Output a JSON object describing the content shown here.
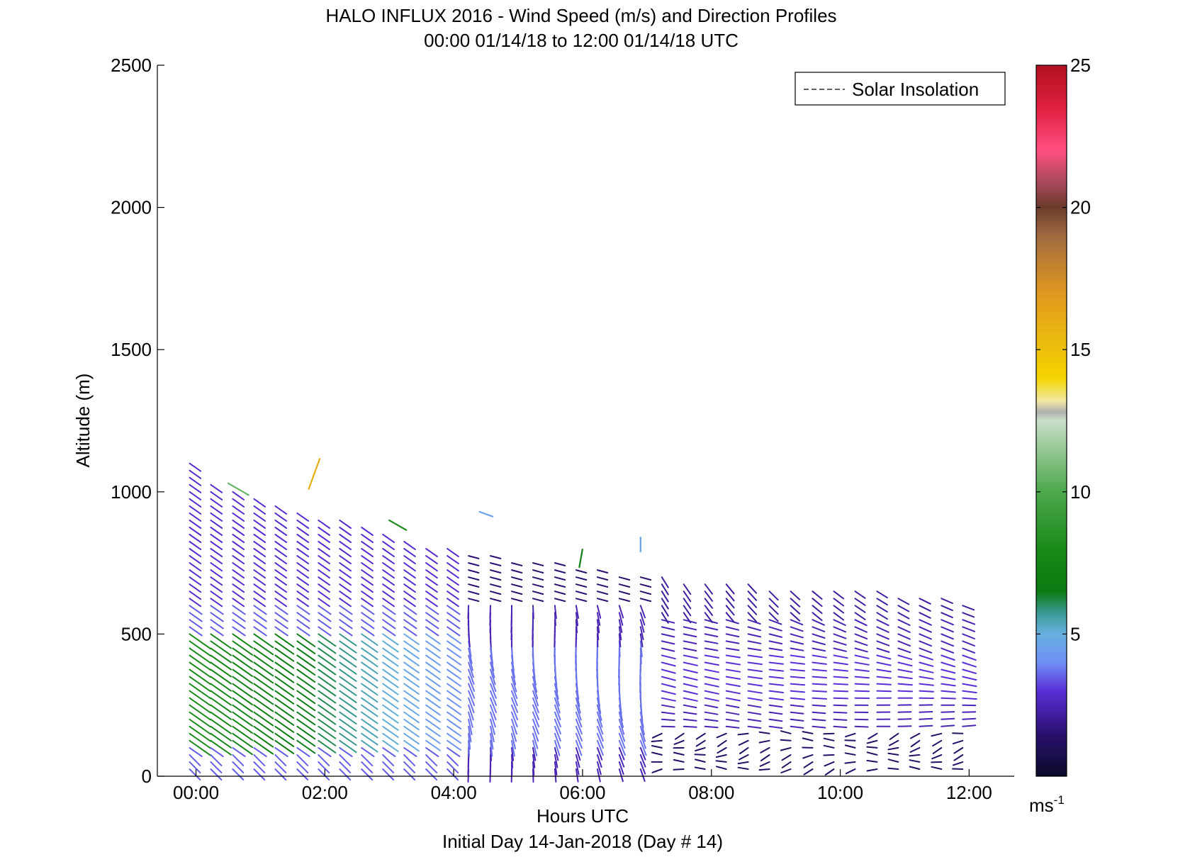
{
  "chart_data": {
    "type": "wind-barb-profile",
    "title": "HALO INFLUX 2016 - Wind Speed (m/s) and Direction Profiles",
    "subtitle": "00:00 01/14/18 to 12:00 01/14/18  UTC",
    "xlabel": "Hours UTC",
    "xlabel2": "Initial Day 14-Jan-2018 (Day # 14)",
    "ylabel": "Altitude (m)",
    "xlim": [
      -0.6,
      12.7
    ],
    "ylim": [
      0,
      2500
    ],
    "x_ticks": [
      {
        "value": 0,
        "label": "00:00"
      },
      {
        "value": 2,
        "label": "02:00"
      },
      {
        "value": 4,
        "label": "04:00"
      },
      {
        "value": 6,
        "label": "06:00"
      },
      {
        "value": 8,
        "label": "08:00"
      },
      {
        "value": 10,
        "label": "10:00"
      },
      {
        "value": 12,
        "label": "12:00"
      }
    ],
    "y_ticks": [
      {
        "value": 0,
        "label": "0"
      },
      {
        "value": 500,
        "label": "500"
      },
      {
        "value": 1000,
        "label": "1000"
      },
      {
        "value": 1500,
        "label": "1500"
      },
      {
        "value": 2000,
        "label": "2000"
      },
      {
        "value": 2500,
        "label": "2500"
      }
    ],
    "legend": {
      "label": "Solar Insolation",
      "placement": "top-right",
      "line_style": "dashed"
    },
    "colorbar": {
      "min": 0,
      "max": 25,
      "unit_base": "ms",
      "unit_exp": "-1",
      "ticks": [
        {
          "value": 5,
          "label": "5"
        },
        {
          "value": 10,
          "label": "10"
        },
        {
          "value": 15,
          "label": "15"
        },
        {
          "value": 20,
          "label": "20"
        },
        {
          "value": 25,
          "label": "25"
        }
      ],
      "colormap": [
        [
          0,
          "#0b0b2a"
        ],
        [
          1.5,
          "#2a1070"
        ],
        [
          3,
          "#5a2fd8"
        ],
        [
          4,
          "#6f8ff5"
        ],
        [
          5,
          "#67b0e0"
        ],
        [
          5.7,
          "#3d9b9a"
        ],
        [
          6.5,
          "#0a7a10"
        ],
        [
          8,
          "#1a8a1a"
        ],
        [
          10,
          "#4ca84c"
        ],
        [
          12.5,
          "#c8e0c8"
        ],
        [
          12.8,
          "#b0b0b0"
        ],
        [
          13.2,
          "#f2e8a0"
        ],
        [
          14,
          "#f4d400"
        ],
        [
          17,
          "#e09820"
        ],
        [
          19,
          "#a06a40"
        ],
        [
          20,
          "#6a3c2c"
        ],
        [
          21,
          "#b04a60"
        ],
        [
          22,
          "#ff4f80"
        ],
        [
          23.5,
          "#e02040"
        ],
        [
          25,
          "#b01020"
        ]
      ]
    },
    "grid": false,
    "profiles": {
      "times": [
        -0.1,
        0.23,
        0.57,
        0.9,
        1.23,
        1.57,
        1.9,
        2.23,
        2.57,
        2.9,
        3.23,
        3.57,
        3.9,
        4.23,
        4.57,
        4.9,
        5.23,
        5.57,
        5.9,
        6.23,
        6.57,
        6.9,
        7.23,
        7.57,
        7.9,
        8.23,
        8.57,
        8.9,
        9.23,
        9.57,
        9.9,
        10.23,
        10.57,
        10.9,
        11.23,
        11.57,
        11.9
      ],
      "top_altitude_m": [
        1110,
        1040,
        1020,
        990,
        960,
        940,
        920,
        900,
        880,
        860,
        840,
        820,
        800,
        790,
        780,
        770,
        760,
        750,
        740,
        730,
        720,
        710,
        700,
        690,
        690,
        680,
        680,
        670,
        670,
        660,
        660,
        650,
        650,
        640,
        640,
        630,
        620
      ],
      "altitude_step_m": 25,
      "note": "Wind vectors every ~25 m: early hours NW flow ~3-8 m/s (green band 150-500 m), transitioning to weak northerly, then light easterly/westerly 1-3 m/s near surface after 07:00.",
      "isolated_vectors": [
        {
          "time": 0.5,
          "alt": 1030,
          "speed": 10.5,
          "dir_deg": 150
        },
        {
          "time": 1.75,
          "alt": 1010,
          "speed": 16,
          "dir_deg": 250
        },
        {
          "time": 3.0,
          "alt": 900,
          "speed": 8,
          "dir_deg": 150
        },
        {
          "time": 4.4,
          "alt": 930,
          "speed": 4.5,
          "dir_deg": 160
        },
        {
          "time": 5.95,
          "alt": 735,
          "speed": 7,
          "dir_deg": 260
        },
        {
          "time": 6.9,
          "alt": 790,
          "speed": 4.5,
          "dir_deg": 270
        }
      ]
    }
  }
}
